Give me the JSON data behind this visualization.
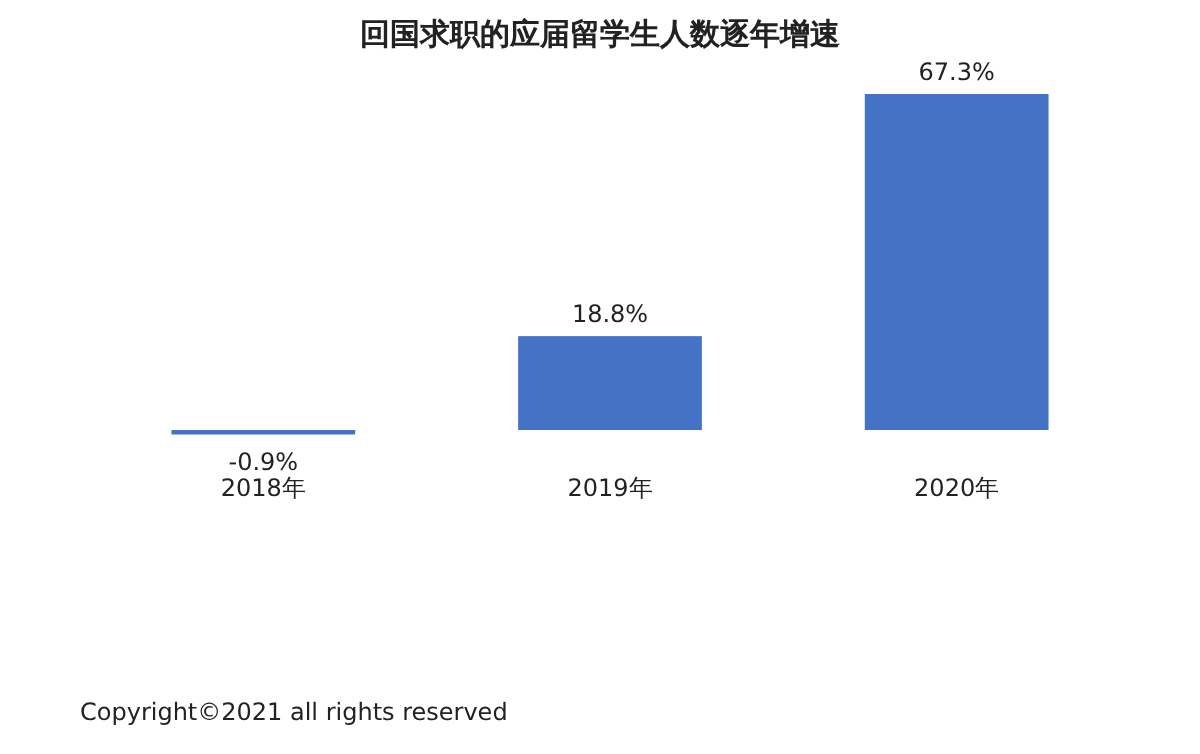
{
  "chart_data": {
    "type": "bar",
    "title": "回国求职的应届留学生人数逐年增速",
    "categories": [
      "2018年",
      "2019年",
      "2020年"
    ],
    "values": [
      -0.9,
      18.8,
      67.3
    ],
    "value_labels": [
      "-0.9%",
      "18.8%",
      "67.3%"
    ],
    "color": "#4472c4",
    "annotations": [
      "Copyright©2021 all rights reserved"
    ]
  }
}
